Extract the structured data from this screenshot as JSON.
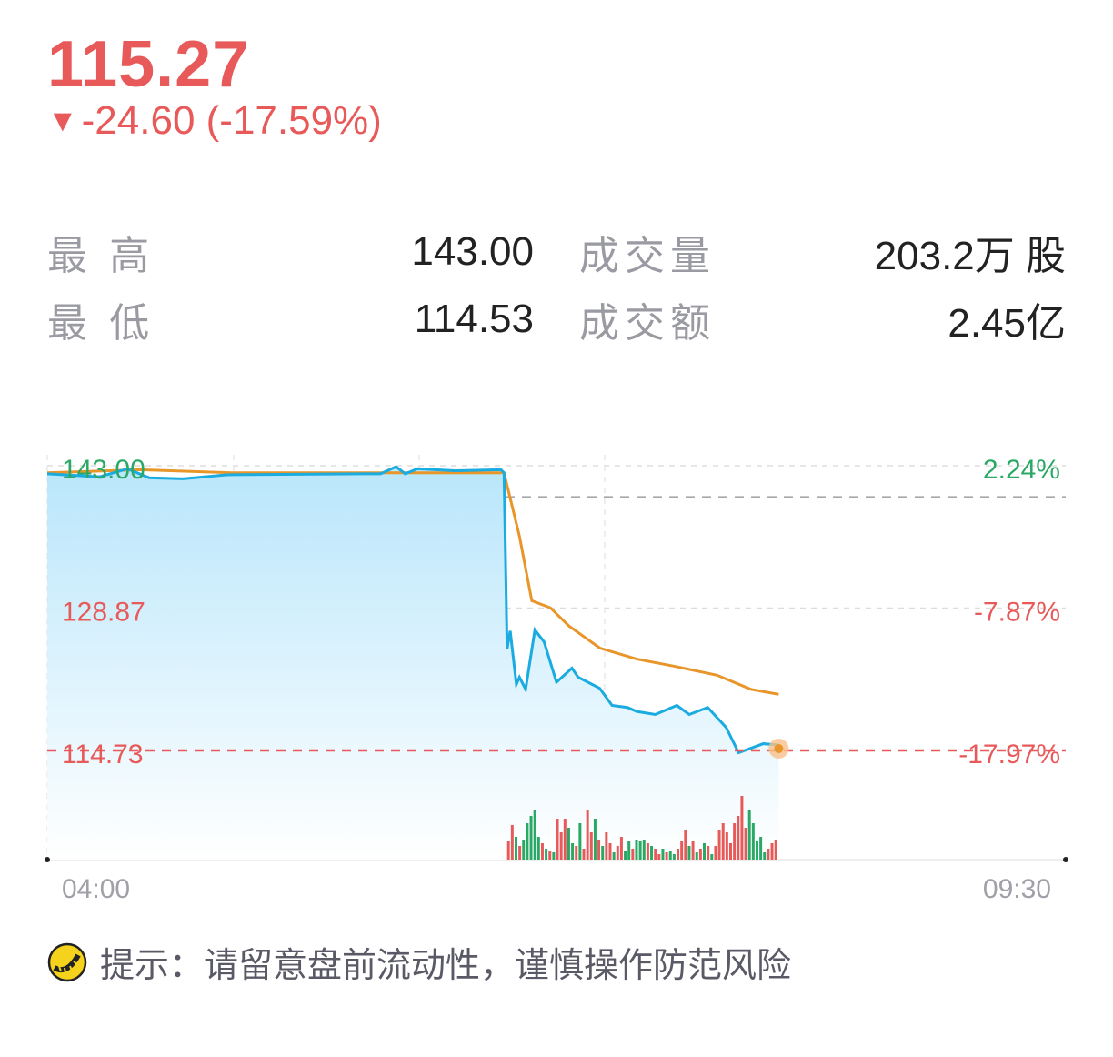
{
  "quote": {
    "price": "115.27",
    "change_arrow": "▼",
    "change": "-24.60 (-17.59%)"
  },
  "stats": [
    {
      "label1": "最 高",
      "value1": "143.00",
      "label2": "成交量",
      "value2": "203.2万 股"
    },
    {
      "label1": "最 低",
      "value1": "114.53",
      "label2": "成交额",
      "value2": "2.45亿"
    }
  ],
  "colors": {
    "up": "#e85a5a",
    "down": "#2aa866",
    "price_line": "#1aabe0",
    "avg_line": "#e8962a",
    "grid": "#dddddd"
  },
  "chart_data": {
    "type": "line",
    "x_range": [
      "04:00",
      "09:30"
    ],
    "x_tick_labels": [
      "04:00",
      "09:30"
    ],
    "ylim": [
      114.73,
      143.0
    ],
    "y_tick_labels": [
      "143.00",
      "128.87",
      "114.73"
    ],
    "pct_tick_labels": [
      "2.24%",
      "-7.87%",
      "-17.97%"
    ],
    "prev_close": 139.87,
    "grid": true,
    "series": [
      {
        "role": "price",
        "x": [
          "04:00",
          "04:17",
          "04:26",
          "04:33",
          "04:44",
          "04:58",
          "05:43",
          "05:48",
          "05:53",
          "05:56",
          "06:00",
          "06:12",
          "06:27",
          "06:28",
          "06:29",
          "06:30",
          "06:32",
          "06:33",
          "06:35",
          "06:38",
          "06:41",
          "06:45",
          "06:50",
          "06:52",
          "06:59",
          "07:03",
          "07:08",
          "07:11",
          "07:17",
          "07:24",
          "07:28",
          "07:34",
          "07:40",
          "07:44",
          "07:52",
          "07:57"
        ],
        "y": [
          142.2,
          141.9,
          142.7,
          141.8,
          141.7,
          142.1,
          142.2,
          142.2,
          142.9,
          142.2,
          142.7,
          142.5,
          142.6,
          142.3,
          124.8,
          126.6,
          121.3,
          122.0,
          120.8,
          126.7,
          125.5,
          121.5,
          122.9,
          122.0,
          120.9,
          119.2,
          119.0,
          118.6,
          118.3,
          119.2,
          118.3,
          119.0,
          117.0,
          114.5,
          115.4,
          115.27
        ]
      },
      {
        "role": "average",
        "x": [
          "04:00",
          "04:30",
          "05:00",
          "06:00",
          "06:28",
          "06:33",
          "06:37",
          "06:43",
          "06:49",
          "06:59",
          "07:11",
          "07:23",
          "07:37",
          "07:48",
          "07:57"
        ],
        "y": [
          142.3,
          142.6,
          142.3,
          142.3,
          142.3,
          136.0,
          129.6,
          128.9,
          127.1,
          124.9,
          123.8,
          123.1,
          122.2,
          120.8,
          120.3
        ]
      }
    ],
    "volume": {
      "start": "06:29",
      "values": [
        20,
        38,
        25,
        15,
        22,
        40,
        48,
        55,
        25,
        18,
        12,
        10,
        8,
        45,
        30,
        45,
        35,
        18,
        15,
        40,
        12,
        55,
        30,
        45,
        22,
        15,
        30,
        18,
        8,
        15,
        25,
        10,
        20,
        12,
        22,
        20,
        22,
        18,
        15,
        12,
        6,
        12,
        8,
        10,
        6,
        12,
        20,
        32,
        15,
        20,
        8,
        12,
        18,
        15,
        6,
        15,
        32,
        40,
        30,
        18,
        40,
        48,
        70,
        35,
        55,
        40,
        20,
        25,
        8,
        12,
        18,
        22
      ],
      "up": [
        1,
        1,
        0,
        1,
        0,
        0,
        0,
        0,
        0,
        1,
        0,
        1,
        0,
        1,
        1,
        1,
        0,
        0,
        1,
        0,
        1,
        1,
        1,
        0,
        1,
        0,
        1,
        1,
        0,
        1,
        1,
        0,
        0,
        1,
        0,
        0,
        0,
        1,
        0,
        1,
        1,
        0,
        1,
        0,
        0,
        1,
        1,
        1,
        0,
        1,
        0,
        1,
        0,
        1,
        0,
        1,
        1,
        1,
        1,
        1,
        1,
        1,
        1,
        1,
        0,
        0,
        0,
        0,
        0,
        1,
        1,
        1
      ]
    }
  },
  "tip": {
    "text": "提示：请留意盘前流动性，谨慎操作防范风险",
    "icon": "tiger-logo-icon"
  }
}
